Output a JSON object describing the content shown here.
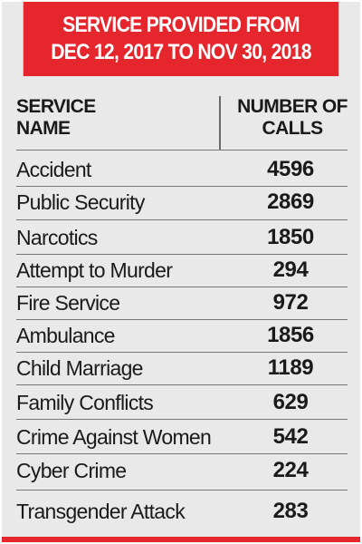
{
  "banner": {
    "line1": "SERVICE PROVIDED FROM",
    "line2": "DEC 12, 2017 TO NOV 30, 2018"
  },
  "table": {
    "header_service": "SERVICE\nNAME",
    "header_calls": "NUMBER OF\nCALLS",
    "rows": [
      {
        "service": "Accident",
        "calls": "4596"
      },
      {
        "service": "Public Security",
        "calls": "2869"
      },
      {
        "service": "Narcotics",
        "calls": "1850"
      },
      {
        "service": "Attempt to Murder",
        "calls": "294"
      },
      {
        "service": "Fire Service",
        "calls": "972"
      },
      {
        "service": "Ambulance",
        "calls": "1856"
      },
      {
        "service": "Child Marriage",
        "calls": "1189"
      },
      {
        "service": "Family Conflicts",
        "calls": "629"
      },
      {
        "service": "Crime Against Women",
        "calls": "542"
      },
      {
        "service": "Cyber Crime",
        "calls": "224"
      },
      {
        "service": "Transgender Attack",
        "calls": "283"
      }
    ]
  },
  "colors": {
    "banner_red": "#e5262c",
    "card_background": "#e9e9e9",
    "text": "#1a1a1a",
    "rule": "#777777"
  }
}
